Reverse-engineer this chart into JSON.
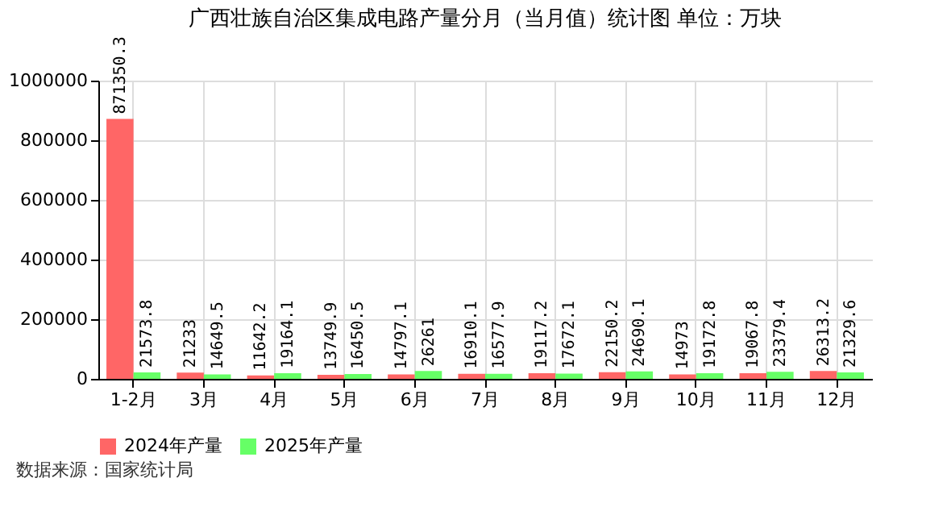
{
  "chart_data": {
    "type": "bar",
    "title": "广西壮族自治区集成电路产量分月（当月值）统计图  单位：万块",
    "categories": [
      "1-2月",
      "3月",
      "4月",
      "5月",
      "6月",
      "7月",
      "8月",
      "9月",
      "10月",
      "11月",
      "12月"
    ],
    "series": [
      {
        "name": "2024年产量",
        "color": "#ff6666",
        "values": [
          871350.3,
          21233,
          11642.2,
          13749.9,
          14797.1,
          16910.1,
          19117.2,
          22150.2,
          14973,
          19067.8,
          26313.2
        ]
      },
      {
        "name": "2025年产量",
        "color": "#66ff66",
        "values": [
          21573.8,
          14649.5,
          19164.1,
          16450.5,
          26261,
          16577.9,
          17672.1,
          24690.1,
          19172.8,
          23379.4,
          21329.6
        ]
      }
    ],
    "ylim": [
      0,
      1000000
    ],
    "yticks": [
      0,
      200000,
      400000,
      600000,
      800000,
      1000000
    ],
    "grid": true,
    "legend": "bottom",
    "data_labels": true,
    "annotations": [
      "数据来源：国家统计局"
    ]
  }
}
